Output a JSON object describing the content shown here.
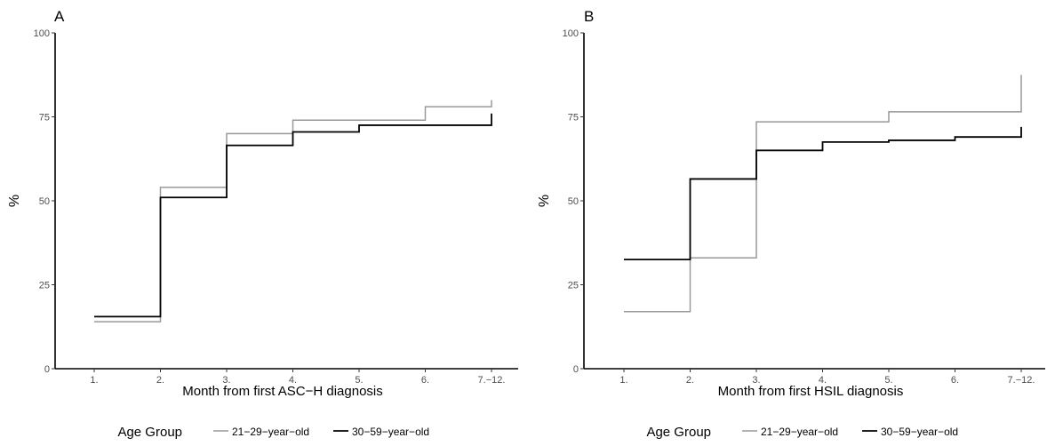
{
  "colors": {
    "grey_series": "#999999",
    "black_series": "#000000",
    "tick_text": "#4d4d4d"
  },
  "chart_data": [
    {
      "type": "line",
      "step": true,
      "panel": "A",
      "xlabel": "Month from first ASC−H diagnosis",
      "ylabel": "%",
      "categories": [
        "1.",
        "2.",
        "3.",
        "4.",
        "5.",
        "6.",
        "7.−12."
      ],
      "yticks": [
        "0",
        "25",
        "50",
        "75",
        "100"
      ],
      "ylim": [
        0,
        100
      ],
      "grid": false,
      "legend_title": "Age Group",
      "legend_position": "bottom",
      "series": [
        {
          "name": "21−29−year−old",
          "color": "#999999",
          "values": [
            14,
            54,
            70,
            74,
            74,
            78,
            80
          ]
        },
        {
          "name": "30−59−year−old",
          "color": "#000000",
          "values": [
            15.5,
            51,
            66.5,
            70.5,
            72.5,
            72.5,
            76
          ]
        }
      ]
    },
    {
      "type": "line",
      "step": true,
      "panel": "B",
      "xlabel": "Month from first HSIL diagnosis",
      "ylabel": "%",
      "categories": [
        "1.",
        "2.",
        "3.",
        "4.",
        "5.",
        "6.",
        "7.−12."
      ],
      "yticks": [
        "0",
        "25",
        "50",
        "75",
        "100"
      ],
      "ylim": [
        0,
        100
      ],
      "grid": false,
      "legend_title": "Age Group",
      "legend_position": "bottom",
      "series": [
        {
          "name": "21−29−year−old",
          "color": "#999999",
          "values": [
            17,
            33,
            73.5,
            73.5,
            76.5,
            76.5,
            87.5
          ]
        },
        {
          "name": "30−59−year−old",
          "color": "#000000",
          "values": [
            32.5,
            56.5,
            65,
            67.5,
            68,
            69,
            72
          ]
        }
      ]
    }
  ]
}
